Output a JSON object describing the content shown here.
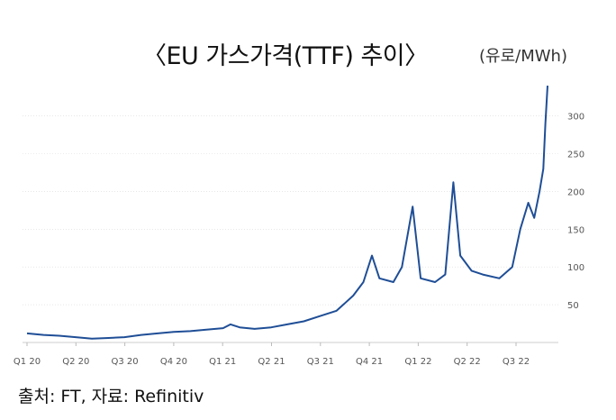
{
  "chart_title": "〈EU 가스가격(TTF) 추이〉",
  "unit_label": "(유로/MWh)",
  "source_note": "출처: FT, 자료: Refinitiv",
  "colors": {
    "line": "#1f4e96",
    "grid": "#d9d9d9",
    "axis": "#bbbbbb"
  },
  "chart_data": {
    "type": "line",
    "title": "〈EU 가스가격(TTF) 추이〉",
    "ylabel": "(유로/MWh)",
    "xlabel": "",
    "x_tick_labels": [
      "Q1 20",
      "Q2 20",
      "Q3 20",
      "Q4 20",
      "Q1 21",
      "Q2 21",
      "Q3 21",
      "Q4 21",
      "Q1 22",
      "Q2 22",
      "Q3 22"
    ],
    "y_ticks": [
      50,
      100,
      150,
      200,
      250,
      300
    ],
    "ylim": [
      0,
      345
    ],
    "grid": "horizontal",
    "series": [
      {
        "name": "",
        "x": [
          "2020-01-01",
          "2020-02-01",
          "2020-03-01",
          "2020-04-01",
          "2020-05-01",
          "2020-06-01",
          "2020-07-01",
          "2020-08-01",
          "2020-09-01",
          "2020-10-01",
          "2020-11-01",
          "2020-12-01",
          "2021-01-01",
          "2021-01-15",
          "2021-02-01",
          "2021-03-01",
          "2021-04-01",
          "2021-05-01",
          "2021-06-01",
          "2021-07-01",
          "2021-08-01",
          "2021-09-01",
          "2021-09-20",
          "2021-10-06",
          "2021-10-20",
          "2021-11-15",
          "2021-12-01",
          "2021-12-21",
          "2022-01-05",
          "2022-02-01",
          "2022-02-20",
          "2022-03-07",
          "2022-03-20",
          "2022-04-10",
          "2022-05-01",
          "2022-06-01",
          "2022-06-25",
          "2022-07-10",
          "2022-07-25",
          "2022-08-05",
          "2022-08-15",
          "2022-08-22",
          "2022-08-26",
          "2022-08-30"
        ],
        "y": [
          12,
          10,
          9,
          7,
          5,
          6,
          7,
          10,
          12,
          14,
          15,
          17,
          19,
          24,
          20,
          18,
          20,
          24,
          28,
          35,
          42,
          62,
          80,
          115,
          85,
          80,
          100,
          180,
          85,
          80,
          90,
          212,
          115,
          95,
          90,
          85,
          100,
          150,
          185,
          165,
          200,
          230,
          290,
          340
        ]
      }
    ]
  }
}
